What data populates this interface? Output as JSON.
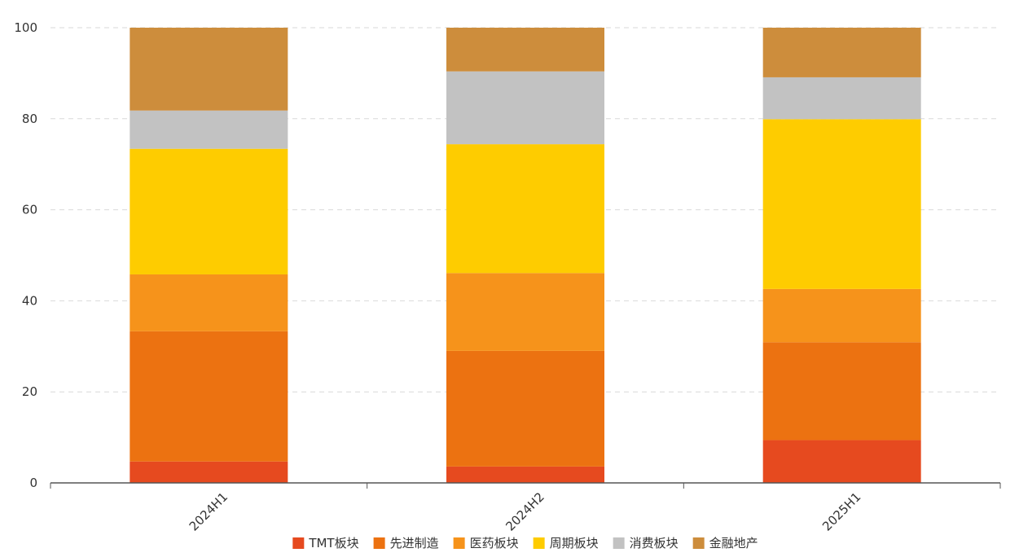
{
  "chart_data": {
    "type": "bar",
    "stacked": true,
    "categories": [
      "2024H1",
      "2024H2",
      "2025H1"
    ],
    "series": [
      {
        "name": "TMT板块",
        "color": "#E64A1F",
        "values": [
          4.7,
          3.6,
          9.4
        ]
      },
      {
        "name": "先进制造",
        "color": "#EC7211",
        "values": [
          28.6,
          25.4,
          21.5
        ]
      },
      {
        "name": "医药板块",
        "color": "#F6931B",
        "values": [
          12.5,
          17.1,
          11.7
        ]
      },
      {
        "name": "周期板块",
        "color": "#FECC00",
        "values": [
          27.6,
          28.3,
          37.3
        ]
      },
      {
        "name": "消费板块",
        "color": "#C2C2C2",
        "values": [
          8.4,
          16.0,
          9.2
        ]
      },
      {
        "name": "金融地产",
        "color": "#CD8D3C",
        "values": [
          18.2,
          9.6,
          10.9
        ]
      }
    ],
    "ylim": [
      0,
      100
    ],
    "yticks": [
      0,
      20,
      40,
      60,
      80,
      100
    ],
    "grid": true,
    "legend": "bottom-center",
    "title": "",
    "xlabel": "",
    "ylabel": ""
  }
}
